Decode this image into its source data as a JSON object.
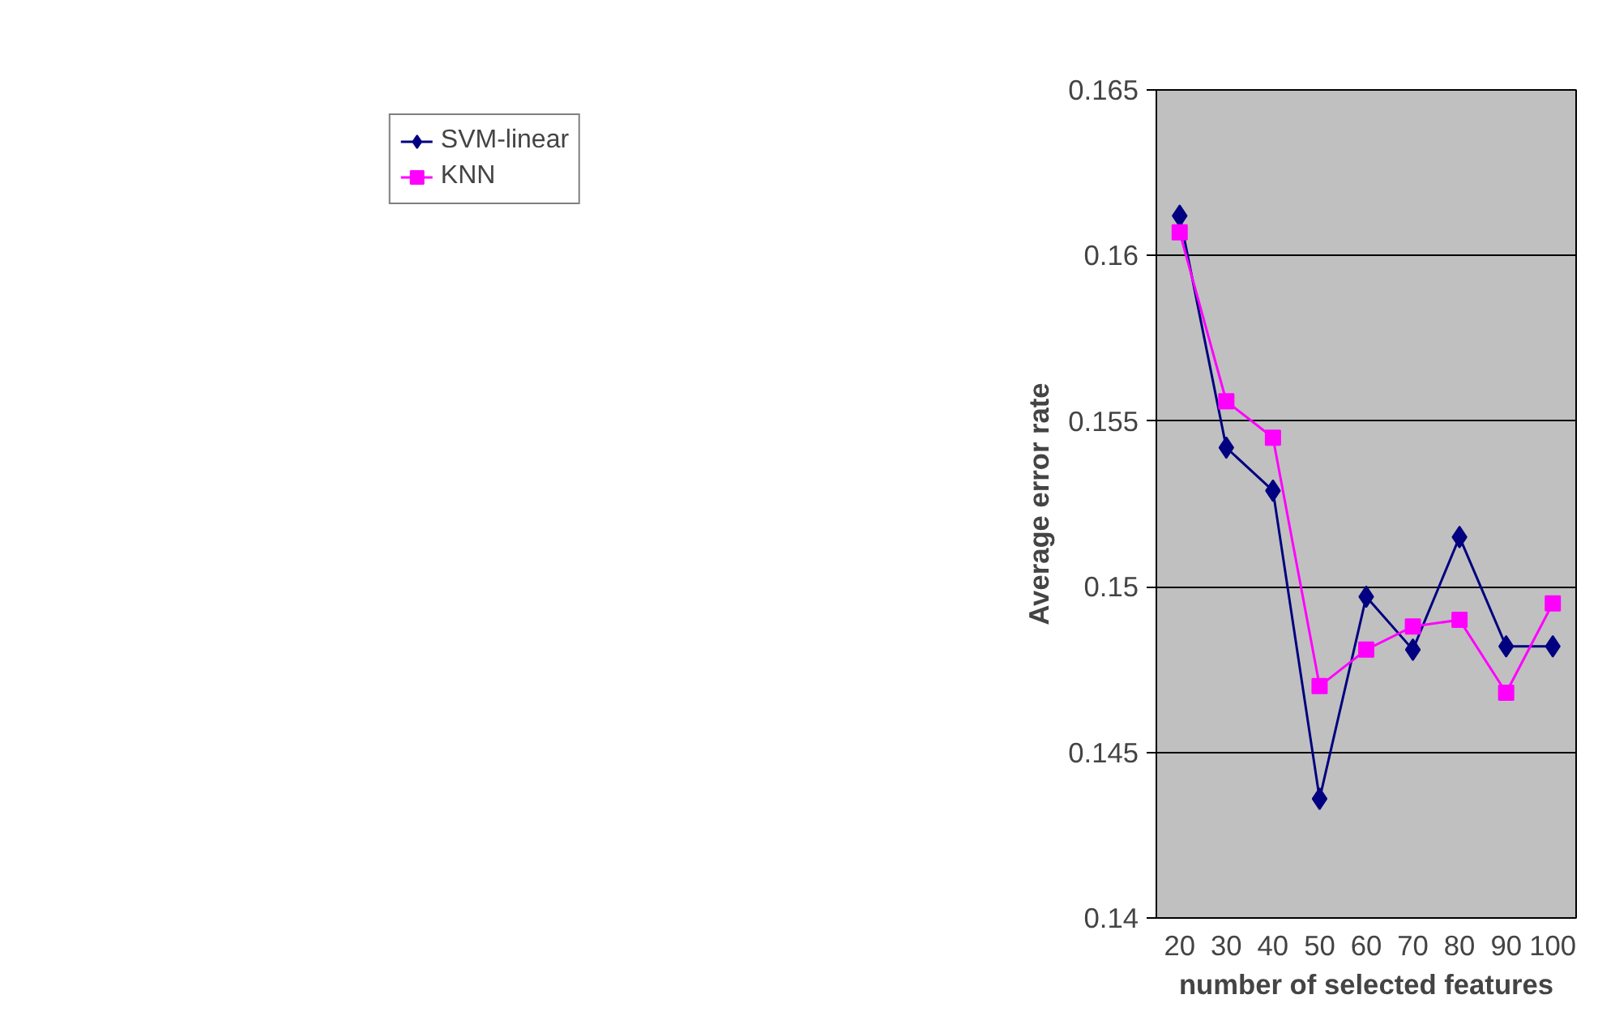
{
  "chart_data": {
    "type": "line",
    "xlabel": "number of selected features",
    "ylabel": "Average error rate",
    "categories": [
      "20",
      "30",
      "40",
      "50",
      "60",
      "70",
      "80",
      "90",
      "100"
    ],
    "series": [
      {
        "name": "SVM-linear",
        "color": "#000080",
        "marker": "diamond",
        "values": [
          0.1612,
          0.1542,
          0.1529,
          0.1436,
          0.1497,
          0.1481,
          0.1515,
          0.1482,
          0.1482
        ]
      },
      {
        "name": "KNN",
        "color": "#ff00ff",
        "marker": "square",
        "values": [
          0.1607,
          0.1556,
          0.1545,
          0.147,
          0.1481,
          0.1488,
          0.149,
          0.1468,
          0.1495
        ]
      }
    ],
    "ylim": [
      0.14,
      0.165
    ],
    "yticks": [
      0.14,
      0.145,
      0.15,
      0.155,
      0.16,
      0.165
    ],
    "grid": "y",
    "legend": "left",
    "line_style": "solid"
  }
}
